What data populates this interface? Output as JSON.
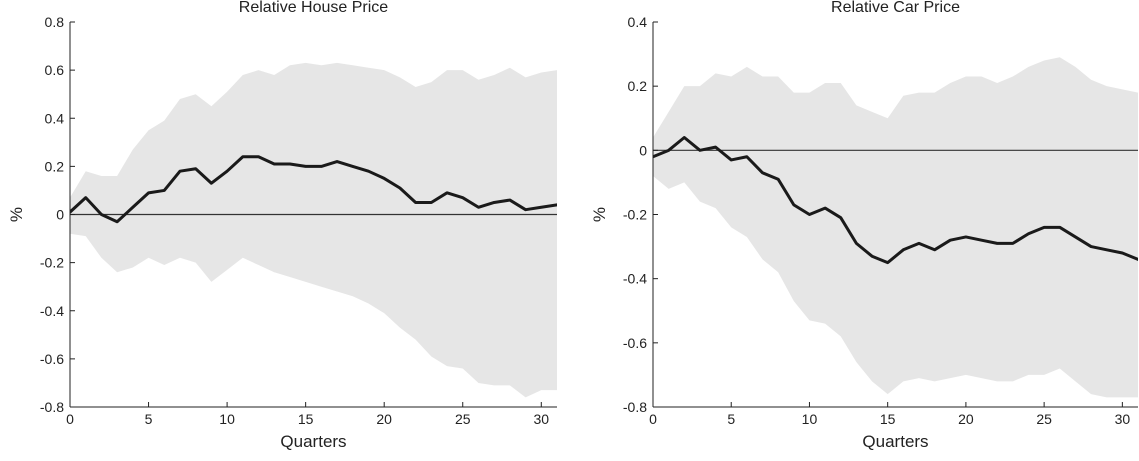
{
  "colors": {
    "band": "#e6e6e6",
    "line": "#1a1a1a",
    "zero_line": "#333333",
    "axis": "#222222",
    "background": "#ffffff"
  },
  "chart_data": [
    {
      "type": "area",
      "title": "Relative House Price",
      "xlabel": "Quarters",
      "ylabel": "%",
      "xlim": [
        0,
        31
      ],
      "ylim": [
        -0.8,
        0.8
      ],
      "xticks": [
        0,
        5,
        10,
        15,
        20,
        25,
        30
      ],
      "yticks": [
        -0.8,
        -0.6,
        -0.4,
        -0.2,
        0,
        0.2,
        0.4,
        0.6,
        0.8
      ],
      "grid": false,
      "zero_line": true,
      "x": [
        0,
        1,
        2,
        3,
        4,
        5,
        6,
        7,
        8,
        9,
        10,
        11,
        12,
        13,
        14,
        15,
        16,
        17,
        18,
        19,
        20,
        21,
        22,
        23,
        24,
        25,
        26,
        27,
        28,
        29,
        30,
        31
      ],
      "series": [
        {
          "values": [
            0.01,
            0.07,
            0.0,
            -0.03,
            0.03,
            0.09,
            0.1,
            0.18,
            0.19,
            0.13,
            0.18,
            0.24,
            0.24,
            0.21,
            0.21,
            0.2,
            0.2,
            0.22,
            0.2,
            0.18,
            0.15,
            0.11,
            0.05,
            0.05,
            0.09,
            0.07,
            0.03,
            0.05,
            0.06,
            0.02,
            0.03,
            0.04
          ],
          "lower": [
            -0.08,
            -0.09,
            -0.18,
            -0.24,
            -0.22,
            -0.18,
            -0.21,
            -0.18,
            -0.2,
            -0.28,
            -0.23,
            -0.18,
            -0.21,
            -0.24,
            -0.26,
            -0.28,
            -0.3,
            -0.32,
            -0.34,
            -0.37,
            -0.41,
            -0.47,
            -0.52,
            -0.59,
            -0.63,
            -0.64,
            -0.7,
            -0.71,
            -0.71,
            -0.76,
            -0.73,
            -0.73
          ],
          "upper": [
            0.07,
            0.18,
            0.16,
            0.16,
            0.27,
            0.35,
            0.39,
            0.48,
            0.5,
            0.45,
            0.51,
            0.58,
            0.6,
            0.58,
            0.62,
            0.63,
            0.62,
            0.63,
            0.62,
            0.61,
            0.6,
            0.57,
            0.53,
            0.55,
            0.6,
            0.6,
            0.56,
            0.58,
            0.61,
            0.57,
            0.59,
            0.6
          ]
        }
      ]
    },
    {
      "type": "area",
      "title": "Relative Car Price",
      "xlabel": "Quarters",
      "ylabel": "%",
      "xlim": [
        0,
        31
      ],
      "ylim": [
        -0.8,
        0.4
      ],
      "xticks": [
        0,
        5,
        10,
        15,
        20,
        25,
        30
      ],
      "yticks": [
        -0.8,
        -0.6,
        -0.4,
        -0.2,
        0,
        0.2,
        0.4
      ],
      "grid": false,
      "zero_line": true,
      "x": [
        0,
        1,
        2,
        3,
        4,
        5,
        6,
        7,
        8,
        9,
        10,
        11,
        12,
        13,
        14,
        15,
        16,
        17,
        18,
        19,
        20,
        21,
        22,
        23,
        24,
        25,
        26,
        27,
        28,
        29,
        30,
        31
      ],
      "series": [
        {
          "values": [
            -0.02,
            0.0,
            0.04,
            0.0,
            0.01,
            -0.03,
            -0.02,
            -0.07,
            -0.09,
            -0.17,
            -0.2,
            -0.18,
            -0.21,
            -0.29,
            -0.33,
            -0.35,
            -0.31,
            -0.29,
            -0.31,
            -0.28,
            -0.27,
            -0.28,
            -0.29,
            -0.29,
            -0.26,
            -0.24,
            -0.24,
            -0.27,
            -0.3,
            -0.31,
            -0.32,
            -0.34
          ],
          "lower": [
            -0.08,
            -0.12,
            -0.1,
            -0.16,
            -0.18,
            -0.24,
            -0.27,
            -0.34,
            -0.38,
            -0.47,
            -0.53,
            -0.54,
            -0.58,
            -0.66,
            -0.72,
            -0.76,
            -0.72,
            -0.71,
            -0.72,
            -0.71,
            -0.7,
            -0.71,
            -0.72,
            -0.72,
            -0.7,
            -0.7,
            -0.68,
            -0.72,
            -0.76,
            -0.77,
            -0.77,
            -0.77
          ],
          "upper": [
            0.04,
            0.12,
            0.2,
            0.2,
            0.24,
            0.23,
            0.26,
            0.23,
            0.23,
            0.18,
            0.18,
            0.21,
            0.21,
            0.14,
            0.12,
            0.1,
            0.17,
            0.18,
            0.18,
            0.21,
            0.23,
            0.23,
            0.21,
            0.23,
            0.26,
            0.28,
            0.29,
            0.26,
            0.22,
            0.2,
            0.19,
            0.18
          ]
        }
      ]
    }
  ]
}
